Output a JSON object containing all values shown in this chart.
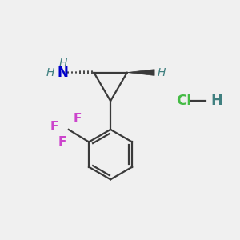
{
  "background_color": "#f0f0f0",
  "bond_color": "#3a3a3a",
  "N_color": "#0000cc",
  "H_color": "#408080",
  "F_color": "#cc44cc",
  "Cl_color": "#44bb44",
  "figsize": [
    3.0,
    3.0
  ],
  "dpi": 100,
  "xlim": [
    0,
    10
  ],
  "ylim": [
    0,
    10
  ]
}
